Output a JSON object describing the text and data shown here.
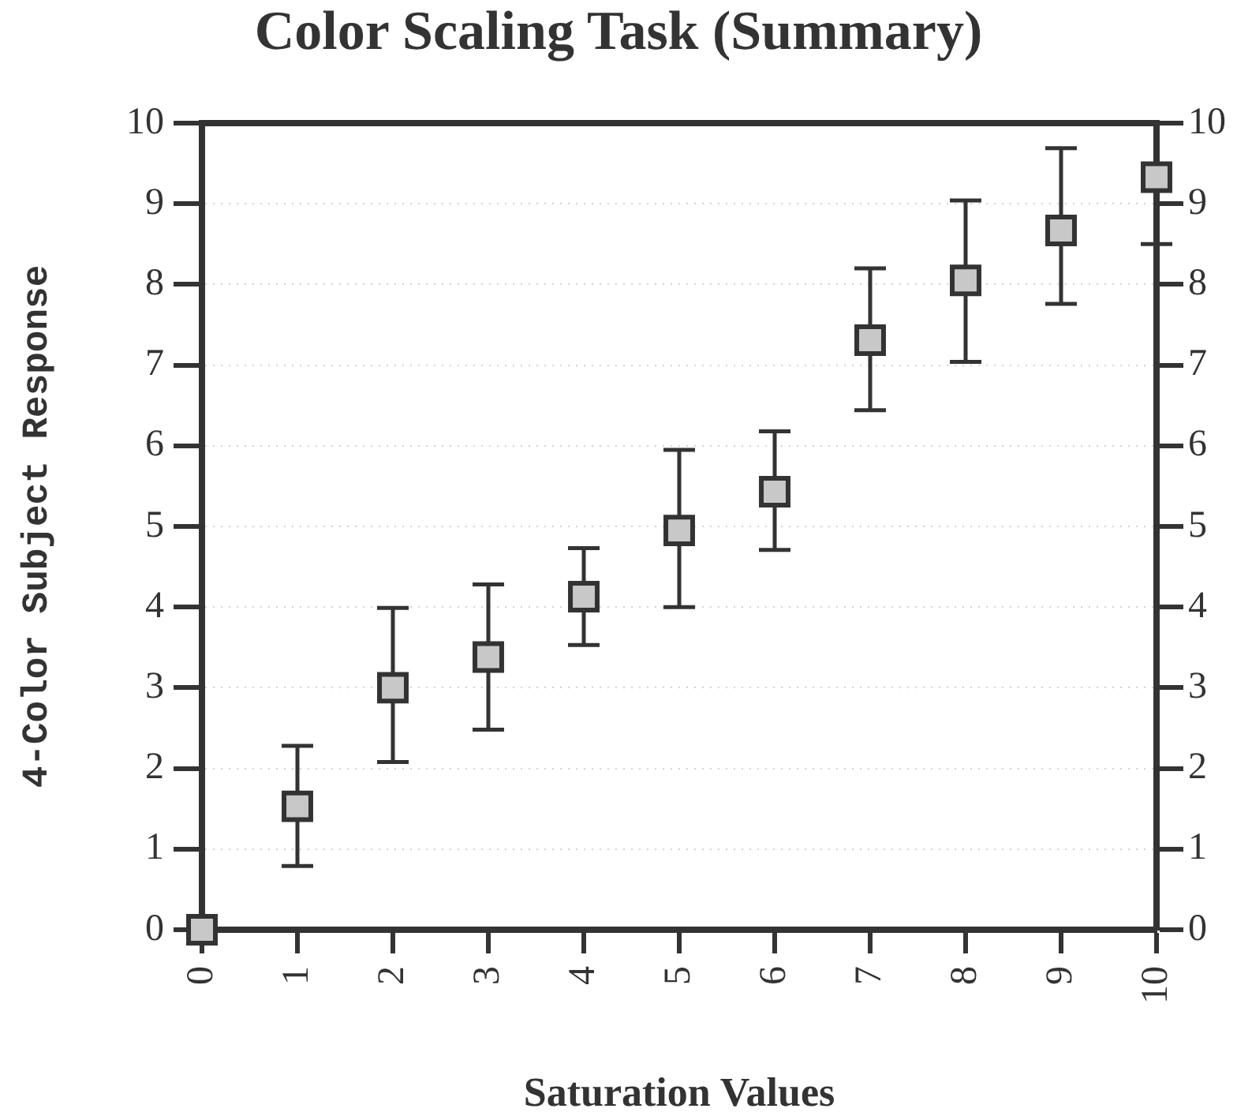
{
  "chart_data": {
    "type": "scatter",
    "title": "Color Scaling Task (Summary)",
    "xlabel": "Saturation Values",
    "ylabel": "4-Color Subject Response",
    "x": [
      0,
      1,
      2,
      3,
      4,
      5,
      6,
      7,
      8,
      9,
      10
    ],
    "series": [
      {
        "color": "#c8c8c8",
        "values": [
          0,
          1.53,
          3.0,
          3.38,
          4.13,
          4.95,
          5.43,
          7.31,
          8.05,
          8.67,
          9.33
        ],
        "errors": [
          null,
          [
            0.79,
            2.28
          ],
          [
            2.08,
            3.99
          ],
          [
            2.48,
            4.28
          ],
          [
            3.53,
            4.73
          ],
          [
            4.0,
            5.95
          ],
          [
            4.71,
            6.18
          ],
          [
            6.44,
            8.2
          ],
          [
            7.04,
            9.04
          ],
          [
            7.76,
            9.69
          ],
          [
            8.5,
            10
          ]
        ]
      }
    ],
    "xlim": [
      0,
      10
    ],
    "xticks": [
      0,
      1,
      2,
      3,
      4,
      5,
      6,
      7,
      8,
      9,
      10
    ],
    "ylim": [
      0,
      10
    ],
    "yticks": [
      0,
      1,
      2,
      3,
      4,
      5,
      6,
      7,
      8,
      9,
      10
    ],
    "y2lim": [
      0,
      10
    ],
    "y2ticks": [
      0,
      1,
      2,
      3,
      4,
      5,
      6,
      7,
      8,
      9,
      10
    ],
    "grid": "y",
    "marker": "square"
  }
}
